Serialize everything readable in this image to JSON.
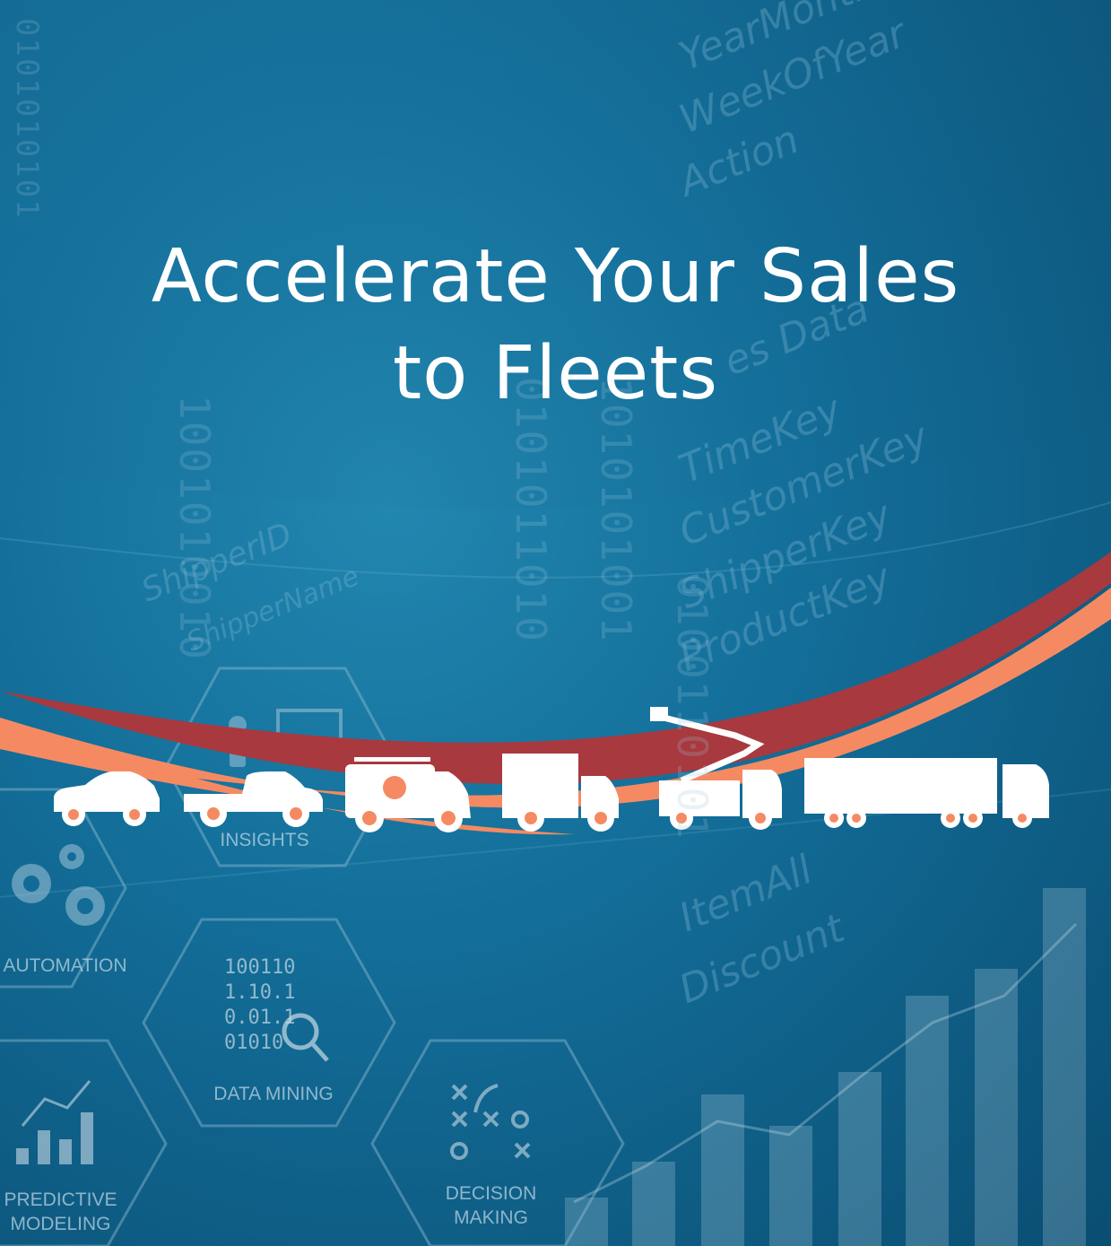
{
  "headline": {
    "line1": "Accelerate Your Sales",
    "line2": "to Fleets"
  },
  "hexagons": {
    "insights": "INSIGHTS",
    "automation": "AUTOMATION",
    "data_mining": "DATA MINING",
    "predictive": "PREDICTIVE",
    "modeling": "MODELING",
    "decision": "DECISION",
    "making": "MAKING"
  },
  "bits": {
    "row1": "100110",
    "row2": "1.10.1",
    "row3": "0.01.1",
    "row4": "01010"
  },
  "watermarks": {
    "w1": "YearMonth",
    "w2": "WeekOfYear",
    "w3": "Action",
    "w4": "es Data",
    "w5": "TimeKey",
    "w6": "CustomerKey",
    "w7": "ShipperKey",
    "w8": "ProductKey",
    "w9": "ItemAll",
    "w10": "Discount",
    "w11": "ShipperID",
    "w12": "ShipperName"
  },
  "binary_strips": {
    "b1": "0101010101",
    "b2": "1001010010",
    "b3": "0101011010",
    "b4": "1010101001",
    "b5": "0100110101"
  },
  "colors": {
    "swoosh_orange": "#f58a62",
    "swoosh_red": "#a8393f",
    "vehicle": "#ffffff",
    "text": "#ffffff"
  },
  "vehicles": [
    "car-icon",
    "pickup-truck-icon",
    "hvac-van-icon",
    "box-truck-icon",
    "bucket-truck-icon",
    "semi-truck-icon"
  ]
}
